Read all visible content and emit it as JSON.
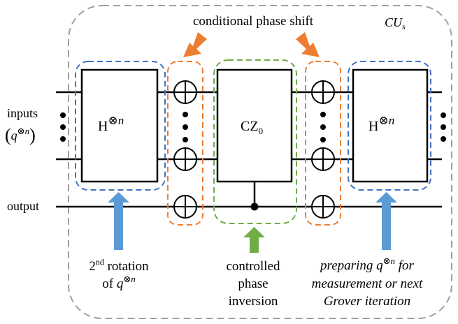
{
  "title_label": "CU",
  "title_label_sub": "s",
  "conditional_phase_shift": "conditional phase shift",
  "inputs_label": "inputs",
  "inputs_q": "q",
  "inputs_tensor": "⊗n",
  "output_label": "output",
  "hadamard_1": {
    "base": "H",
    "sup": "⊗n"
  },
  "cz_gate": {
    "base": "CZ",
    "sub": "0"
  },
  "hadamard_2": {
    "base": "H",
    "sup": "⊗n"
  },
  "annotation_left": {
    "line1_pre": "2",
    "line1_sup": "nd",
    "line1_post": " rotation",
    "line2_pre": "of ",
    "line2_q": "q",
    "line2_sup": "⊗n"
  },
  "annotation_center": {
    "line1": "controlled",
    "line2": "phase",
    "line3": "inversion"
  },
  "annotation_right": {
    "line1_pre": "preparing ",
    "line1_q": "q",
    "line1_sup": "⊗n",
    "line1_post": " for",
    "line2": "measurement or next",
    "line3": "Grover iteration"
  },
  "colors": {
    "outer_border": "#a0a0a0",
    "blue_group": "#4472c4",
    "orange_group": "#ed7d31",
    "green_group": "#70ad47",
    "blue_arrow": "#5b9bd5",
    "orange_arrow": "#ed7d31",
    "green_arrow": "#70ad47"
  }
}
